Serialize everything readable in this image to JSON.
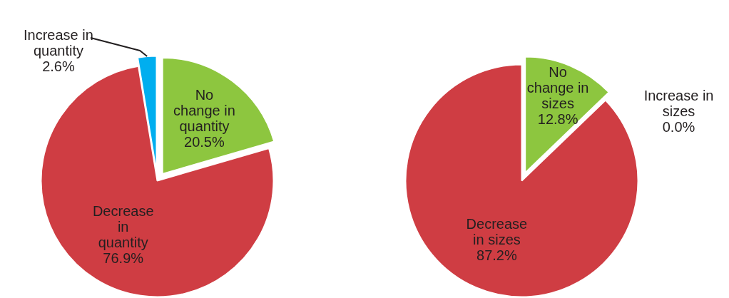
{
  "chart_data": [
    {
      "type": "pie",
      "categories": [
        "No\nchange in\nquantity",
        "Decrease\nin\nquantity",
        "Increase in\nquantity"
      ],
      "values": [
        20.5,
        76.9,
        2.6
      ],
      "colors": [
        "#8dc63f",
        "#cf3d43",
        "#00aeef"
      ],
      "value_labels": [
        "20.5%",
        "76.9%",
        "2.6%"
      ]
    },
    {
      "type": "pie",
      "categories": [
        "No\nchange in\nsizes",
        "Decrease\nin sizes",
        "Increase in\nsizes"
      ],
      "values": [
        12.8,
        87.2,
        0.0
      ],
      "colors": [
        "#8dc63f",
        "#cf3d43",
        "#00aeef"
      ],
      "value_labels": [
        "12.8%",
        "87.2%",
        "0.0%"
      ]
    }
  ]
}
